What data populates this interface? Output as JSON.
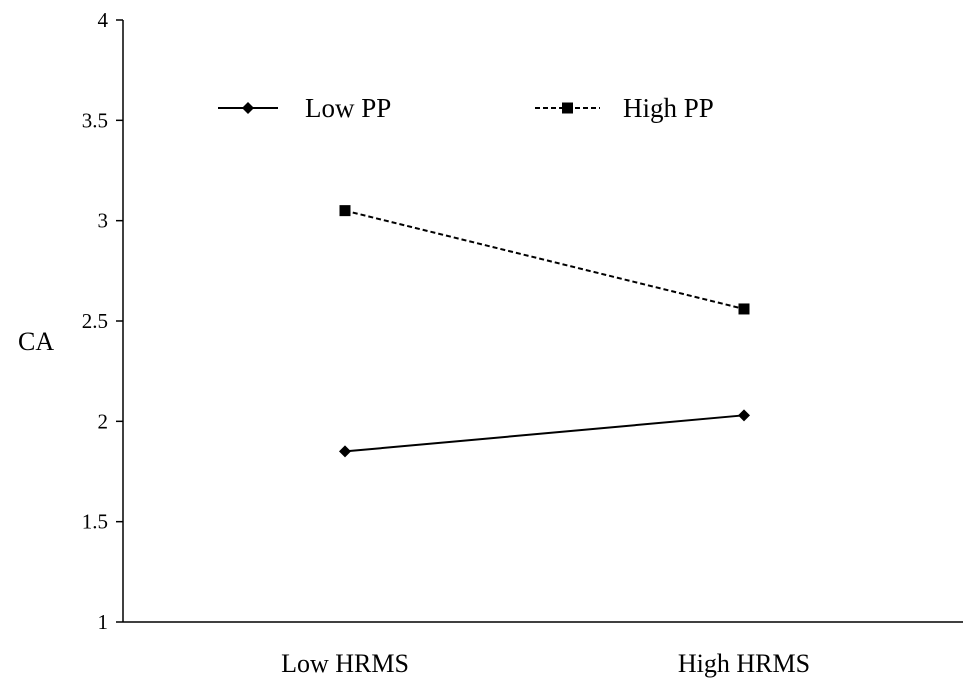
{
  "chart_data": {
    "type": "line",
    "ylabel": "CA",
    "xlabel": "",
    "ylim": [
      1,
      4
    ],
    "yticks": [
      "1",
      "1.5",
      "2",
      "2.5",
      "3",
      "3.5",
      "4"
    ],
    "categories": [
      "Low HRMS",
      "High HRMS"
    ],
    "grid": false,
    "legend_position": "top",
    "series": [
      {
        "name": "Low PP",
        "values": [
          1.85,
          2.03
        ],
        "style": "solid",
        "marker": "diamond",
        "color": "#000000"
      },
      {
        "name": "High PP",
        "values": [
          3.05,
          2.56
        ],
        "style": "dashed",
        "marker": "square",
        "color": "#000000"
      }
    ]
  }
}
